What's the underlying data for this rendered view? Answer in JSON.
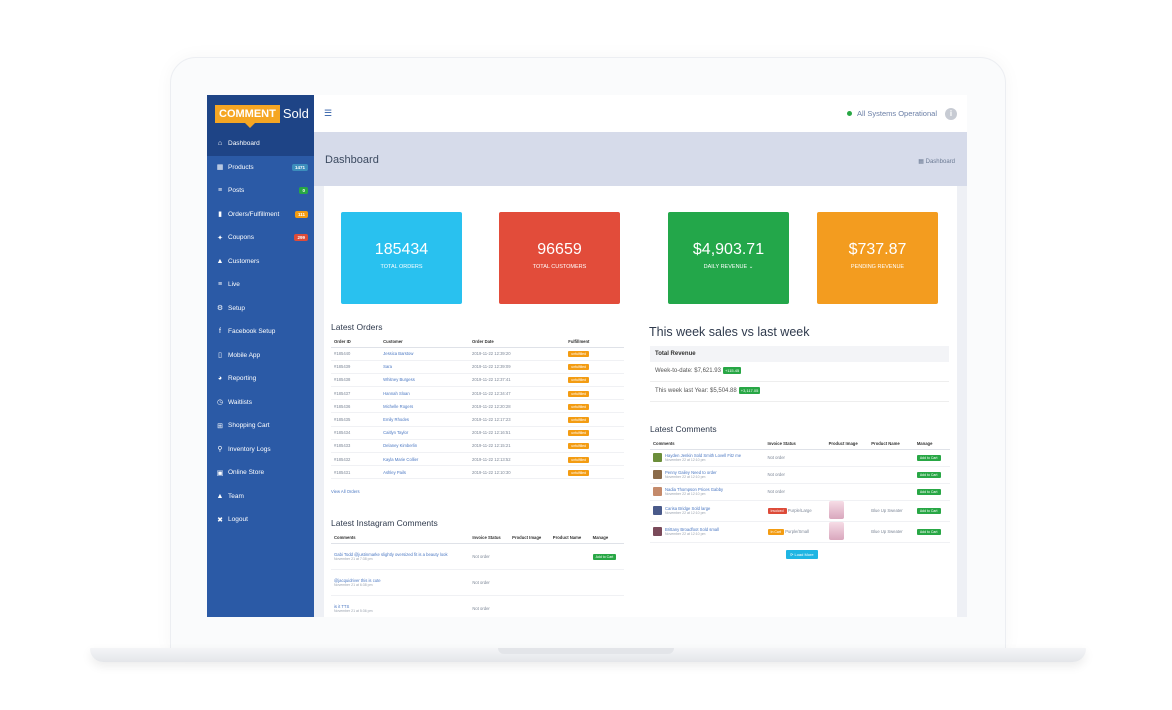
{
  "logo": {
    "comment": "COMMENT",
    "sold": "Sold"
  },
  "sidebar": {
    "items": [
      {
        "label": "Dashboard",
        "icon": "⌂",
        "badge": ""
      },
      {
        "label": "Products",
        "icon": "▦",
        "badge": "1471",
        "badge_color": "#3c8dbc"
      },
      {
        "label": "Posts",
        "icon": "≡",
        "badge": "0",
        "badge_color": "#28a745"
      },
      {
        "label": "Orders/Fulfillment",
        "icon": "▮",
        "badge": "111",
        "badge_color": "#f39c12"
      },
      {
        "label": "Coupons",
        "icon": "✦",
        "badge": "299",
        "badge_color": "#dd4b39"
      },
      {
        "label": "Customers",
        "icon": "▲",
        "badge": ""
      },
      {
        "label": "Live",
        "icon": "≡",
        "badge": ""
      },
      {
        "label": "Setup",
        "icon": "⚙",
        "badge": ""
      },
      {
        "label": "Facebook Setup",
        "icon": "f",
        "badge": ""
      },
      {
        "label": "Mobile App",
        "icon": "▯",
        "badge": ""
      },
      {
        "label": "Reporting",
        "icon": "◕",
        "badge": ""
      },
      {
        "label": "Waitlists",
        "icon": "◷",
        "badge": ""
      },
      {
        "label": "Shopping Cart",
        "icon": "⊞",
        "badge": ""
      },
      {
        "label": "Inventory Logs",
        "icon": "⚲",
        "badge": ""
      },
      {
        "label": "Online Store",
        "icon": "▣",
        "badge": ""
      },
      {
        "label": "Team",
        "icon": "▲",
        "badge": ""
      },
      {
        "label": "Logout",
        "icon": "✖",
        "badge": ""
      }
    ]
  },
  "topbar": {
    "status": "All Systems Operational",
    "info": "i"
  },
  "header": {
    "title": "Dashboard",
    "breadcrumb": "Dashboard"
  },
  "cards": [
    {
      "value": "185434",
      "label": "TOTAL ORDERS",
      "color": "#29c1ef"
    },
    {
      "value": "96659",
      "label": "TOTAL CUSTOMERS",
      "color": "#e24c3a"
    },
    {
      "value": "$4,903.71",
      "label": "DAILY REVENUE",
      "color": "#23a74a"
    },
    {
      "value": "$737.87",
      "label": "PENDING REVENUE",
      "color": "#f39c1f"
    }
  ],
  "latest_orders": {
    "title": "Latest Orders",
    "columns": [
      "Order ID",
      "Customer",
      "Order Date",
      "Fulfillment"
    ],
    "rows": [
      [
        "#185440",
        "Jessica Barstow",
        "2019-11-22 12:39:20",
        "unfulfilled"
      ],
      [
        "#185439",
        "Sara",
        "2019-11-22 12:39:09",
        "unfulfilled"
      ],
      [
        "#185438",
        "Whitney Burgess",
        "2019-11-22 12:37:41",
        "unfulfilled"
      ],
      [
        "#185437",
        "Hannah Sloan",
        "2019-11-22 12:34:47",
        "unfulfilled"
      ],
      [
        "#185436",
        "Michelle Rogers",
        "2019-11-22 12:20:28",
        "unfulfilled"
      ],
      [
        "#185435",
        "Emily Rhodes",
        "2019-11-22 12:17:23",
        "unfulfilled"
      ],
      [
        "#185434",
        "Caitlyn Taylor",
        "2019-11-22 12:16:51",
        "unfulfilled"
      ],
      [
        "#185433",
        "Delaney Kimberlin",
        "2019-11-22 12:15:21",
        "unfulfilled"
      ],
      [
        "#185432",
        "Kayla Marie Collier",
        "2019-11-22 12:13:52",
        "unfulfilled"
      ],
      [
        "#185431",
        "Ashley Pails",
        "2019-11-22 12:10:30",
        "unfulfilled"
      ]
    ],
    "view_all": "View All Orders"
  },
  "weekly": {
    "title": "This week sales vs last week",
    "head": "Total Revenue",
    "rows": [
      {
        "text": "Week-to-date: $7,621.93",
        "tag": "+115.45"
      },
      {
        "text": "This week last Year: $5,504.88",
        "tag": "+3,117.05"
      }
    ]
  },
  "latest_comments": {
    "title": "Latest Comments",
    "columns": [
      "Comments",
      "Invoice Status",
      "Product Image",
      "Product Name",
      "Manage"
    ],
    "rows": [
      {
        "name": "Hayden Jenkin Sold Smith Lovell Fitz me",
        "date": "November 22 at 12:10 pm",
        "status": "Not order",
        "status_type": "text",
        "product": "",
        "image": false,
        "thumb": "#6b8e3a"
      },
      {
        "name": "Penny Gailey Need to order",
        "date": "November 22 at 12:10 pm",
        "status": "Not order",
        "status_type": "text",
        "product": "",
        "image": false,
        "thumb": "#8a6b4a"
      },
      {
        "name": "Nadia Thompson Prices Gabby",
        "date": "November 22 at 12:10 pm",
        "status": "Not order",
        "status_type": "text",
        "product": "",
        "image": false,
        "thumb": "#c48a6b"
      },
      {
        "name": "Carisa Bridge Sold large",
        "date": "November 22 at 12:10 pm",
        "status": "Purple/Large",
        "status_tag": "Invoiced",
        "status_type": "red",
        "product": "Blue Up Sweater",
        "image": true,
        "thumb": "#4a5a8a"
      },
      {
        "name": "Brittany Broadfoot Sold small",
        "date": "November 22 at 12:10 pm",
        "status": "Purple/Small",
        "status_tag": "In Cart",
        "status_type": "orange",
        "product": "Blue Up Sweater",
        "image": true,
        "thumb": "#7a4a5a"
      }
    ],
    "manage": "Add to Cart",
    "load_more": "Load More"
  },
  "instagram": {
    "title": "Latest Instagram Comments",
    "columns": [
      "Comments",
      "Invoice Status",
      "Product Image",
      "Product Name",
      "Manage"
    ],
    "rows": [
      {
        "name": "Gabi Todd @justinmarke slightly oversized fit is a beauty look",
        "date": "November 21 at 7:38 pm",
        "status": "Not order",
        "manage": true
      },
      {
        "name": "@jacquidriver this is cute",
        "date": "November 21 at 6:38 pm",
        "status": "Not order",
        "manage": false
      },
      {
        "name": "is it TTS",
        "date": "November 21 at 5:36 pm",
        "status": "Not order",
        "manage": false
      }
    ]
  }
}
